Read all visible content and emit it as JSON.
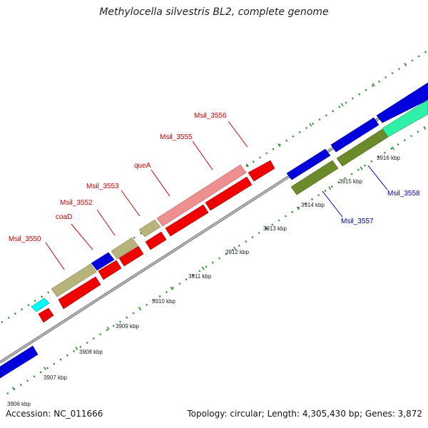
{
  "title": "Methylocella silvestris BL2, complete genome",
  "footer": {
    "accession": "Accession: NC_011666",
    "stats": "Topology: circular; Length: 4,305,430 bp; Genes: 3,872"
  },
  "colors": {
    "backbone": "#8a8a8a",
    "tick": "#2f8f2f",
    "red_gene": "#f00000",
    "pink_gene": "#ef9090",
    "olive_gene": "#b8b37a",
    "dark_olive_gene": "#6b8a2a",
    "blue_gene": "#0000dd",
    "cyan_gene": "#00ffff",
    "mint_gene": "#30f0a8",
    "red_label": "#cc0000",
    "blue_label": "#0000aa"
  },
  "scale_labels": [
    "3906 kbp",
    "3907 kbp",
    "3908 kbp",
    "3909 kbp",
    "3910 kbp",
    "3911 kbp",
    "3912 kbp",
    "3913 kbp",
    "3914 kbp",
    "3915 kbp",
    "3916 kbp"
  ],
  "gene_labels": [
    {
      "text": "Msil_3550",
      "color": "red"
    },
    {
      "text": "coaD",
      "color": "red"
    },
    {
      "text": "Msil_3552",
      "color": "red"
    },
    {
      "text": "Msil_3553",
      "color": "red"
    },
    {
      "text": "queA",
      "color": "red"
    },
    {
      "text": "Msil_3555",
      "color": "red"
    },
    {
      "text": "Msil_3556",
      "color": "red"
    },
    {
      "text": "Msil_3557",
      "color": "blue"
    },
    {
      "text": "Msil_3558",
      "color": "blue"
    }
  ]
}
